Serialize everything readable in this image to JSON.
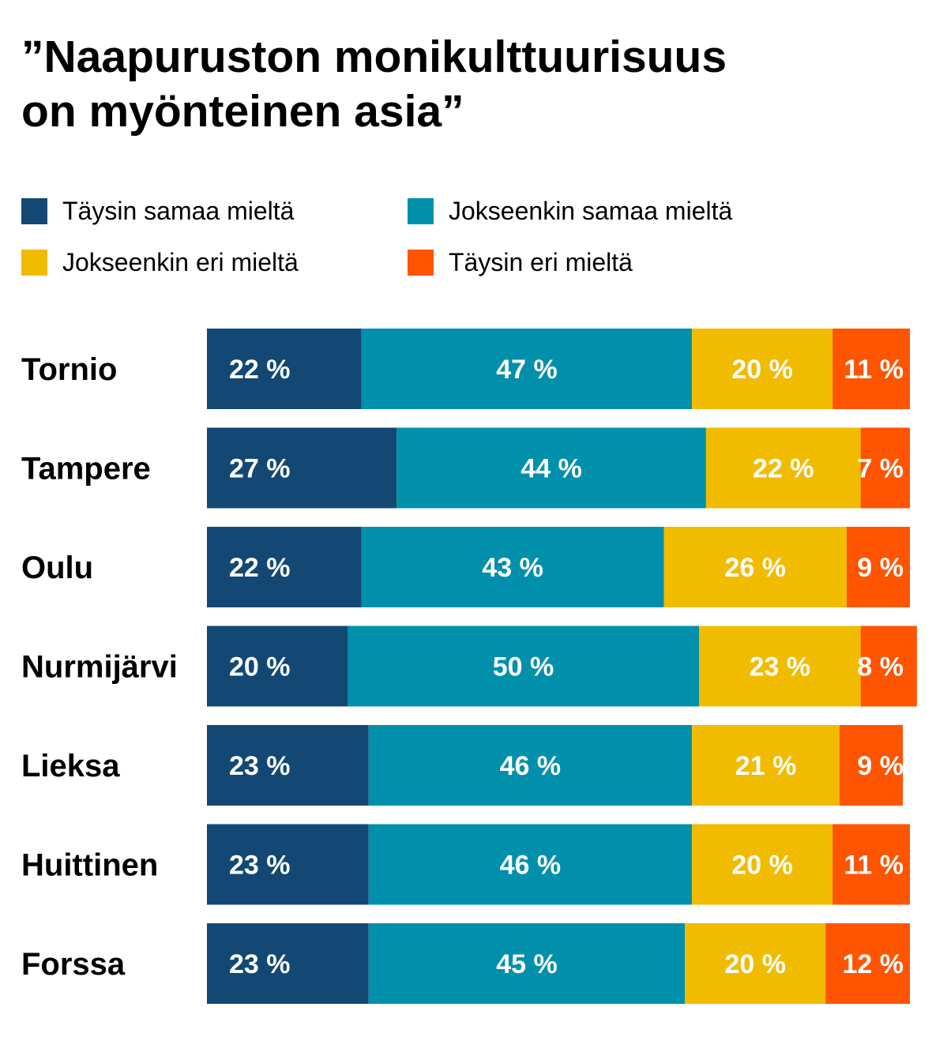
{
  "title_line1": "”Naapuruston monikulttuurisuus",
  "title_line2": "on myönteinen asia”",
  "chart_data": {
    "type": "bar",
    "orientation": "horizontal",
    "stacked": true,
    "title": "”Naapuruston monikulttuurisuus on myönteinen asia”",
    "unit": "%",
    "value_suffix": " %",
    "categories": [
      "Tornio",
      "Tampere",
      "Oulu",
      "Nurmijärvi",
      "Lieksa",
      "Huittinen",
      "Forssa"
    ],
    "series": [
      {
        "name": "Täysin samaa mieltä",
        "color": "#134874",
        "values": [
          22,
          27,
          22,
          20,
          23,
          23,
          23
        ]
      },
      {
        "name": "Jokseenkin samaa mieltä",
        "color": "#0090ab",
        "values": [
          47,
          44,
          43,
          50,
          46,
          46,
          45
        ]
      },
      {
        "name": "Jokseenkin eri mieltä",
        "color": "#f1bb00",
        "values": [
          20,
          22,
          26,
          23,
          21,
          20,
          20
        ]
      },
      {
        "name": "Täysin eri mieltä",
        "color": "#ff5400",
        "values": [
          11,
          7,
          9,
          8,
          9,
          11,
          12
        ]
      }
    ],
    "xlim": [
      0,
      100
    ],
    "legend_position": "top",
    "grid": false
  }
}
